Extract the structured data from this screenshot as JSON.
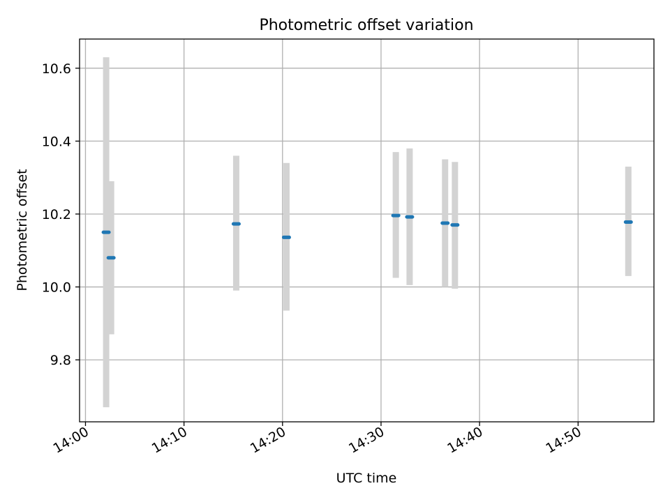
{
  "chart_data": {
    "type": "scatter",
    "title": "Photometric offset variation",
    "xlabel": "UTC time",
    "ylabel": "Photometric offset",
    "x_ticks": [
      "14:00",
      "14:10",
      "14:20",
      "14:30",
      "14:40",
      "14:50"
    ],
    "x_tick_minutes": [
      0,
      10,
      20,
      30,
      40,
      50
    ],
    "y_ticks": [
      9.8,
      10.0,
      10.2,
      10.4,
      10.6
    ],
    "y_tick_labels": [
      "9.8",
      "10.0",
      "10.2",
      "10.4",
      "10.6"
    ],
    "xlim": [
      "13:59.4",
      "14:57.7"
    ],
    "ylim": [
      9.63,
      10.68
    ],
    "grid": true,
    "colors": {
      "point": "#1f77b4",
      "errorbar": "#d3d3d3",
      "grid": "#b0b0b0"
    },
    "points": [
      {
        "time": "14:02:06",
        "y": 10.15,
        "ylow": 9.67,
        "yhigh": 10.63
      },
      {
        "time": "14:02:36",
        "y": 10.08,
        "ylow": 9.87,
        "yhigh": 10.29
      },
      {
        "time": "14:15:18",
        "y": 10.173,
        "ylow": 9.99,
        "yhigh": 10.36
      },
      {
        "time": "14:20:24",
        "y": 10.136,
        "ylow": 9.935,
        "yhigh": 10.34
      },
      {
        "time": "14:31:30",
        "y": 10.196,
        "ylow": 10.025,
        "yhigh": 10.37
      },
      {
        "time": "14:32:54",
        "y": 10.192,
        "ylow": 10.005,
        "yhigh": 10.38
      },
      {
        "time": "14:36:30",
        "y": 10.175,
        "ylow": 10.0,
        "yhigh": 10.35
      },
      {
        "time": "14:37:30",
        "y": 10.17,
        "ylow": 9.995,
        "yhigh": 10.343
      },
      {
        "time": "14:55:06",
        "y": 10.178,
        "ylow": 10.03,
        "yhigh": 10.33
      }
    ]
  }
}
